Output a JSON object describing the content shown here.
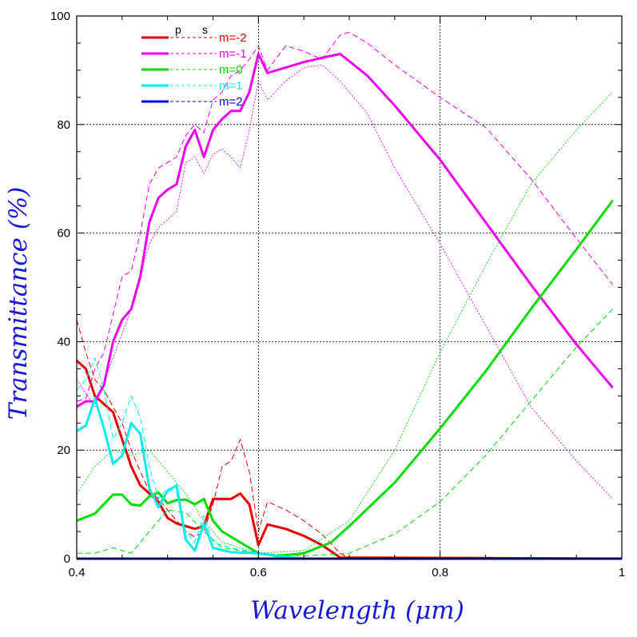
{
  "chart_data": {
    "type": "line",
    "title": "",
    "xlabel": "Wavelength (μm)",
    "ylabel": "Transmittance (%)",
    "xlim": [
      0.4,
      1.0
    ],
    "ylim": [
      0,
      100
    ],
    "xticks": [
      0.4,
      0.6,
      0.8,
      1.0
    ],
    "xtick_labels": [
      "0.4",
      "0.6",
      "0.8",
      "1"
    ],
    "yticks": [
      0,
      20,
      40,
      60,
      80,
      100
    ],
    "ytick_labels": [
      "0",
      "20",
      "40",
      "60",
      "80",
      "100"
    ],
    "grid": true,
    "legend_position": "top-left",
    "legend_header": [
      "p",
      "s"
    ],
    "series": [
      {
        "name": "m=-2",
        "color": "#e60000",
        "p": [
          [
            0.4,
            36.5
          ],
          [
            0.41,
            35
          ],
          [
            0.42,
            30
          ],
          [
            0.43,
            28.5
          ],
          [
            0.44,
            27
          ],
          [
            0.45,
            22
          ],
          [
            0.46,
            17
          ],
          [
            0.47,
            13.5
          ],
          [
            0.48,
            12
          ],
          [
            0.49,
            10.5
          ],
          [
            0.5,
            7.5
          ],
          [
            0.51,
            6.5
          ],
          [
            0.52,
            6
          ],
          [
            0.53,
            5.5
          ],
          [
            0.54,
            6
          ],
          [
            0.55,
            11
          ],
          [
            0.56,
            11
          ],
          [
            0.57,
            11
          ],
          [
            0.58,
            12
          ],
          [
            0.59,
            10
          ],
          [
            0.6,
            2.5
          ],
          [
            0.61,
            6.3
          ],
          [
            0.63,
            5.5
          ],
          [
            0.65,
            4.2
          ],
          [
            0.67,
            2.5
          ],
          [
            0.69,
            0.2
          ],
          [
            1.0,
            0
          ]
        ],
        "s": [
          [
            0.4,
            44
          ],
          [
            0.41,
            38
          ],
          [
            0.42,
            33
          ],
          [
            0.43,
            31
          ],
          [
            0.44,
            28
          ],
          [
            0.45,
            25
          ],
          [
            0.46,
            20
          ],
          [
            0.47,
            16
          ],
          [
            0.48,
            12.5
          ],
          [
            0.49,
            11
          ],
          [
            0.5,
            9
          ],
          [
            0.51,
            7
          ],
          [
            0.52,
            5
          ],
          [
            0.53,
            4
          ],
          [
            0.54,
            5
          ],
          [
            0.55,
            10
          ],
          [
            0.56,
            17
          ],
          [
            0.57,
            18
          ],
          [
            0.58,
            22
          ],
          [
            0.59,
            16
          ],
          [
            0.6,
            5
          ],
          [
            0.61,
            10.5
          ],
          [
            0.63,
            9
          ],
          [
            0.65,
            7
          ],
          [
            0.67,
            4.5
          ],
          [
            0.69,
            1
          ],
          [
            0.7,
            0
          ],
          [
            1.0,
            0
          ]
        ]
      },
      {
        "name": "m=-1",
        "color": "#ee00ee",
        "p": [
          [
            0.4,
            28
          ],
          [
            0.41,
            29
          ],
          [
            0.42,
            29
          ],
          [
            0.43,
            32
          ],
          [
            0.44,
            40
          ],
          [
            0.45,
            44
          ],
          [
            0.46,
            46
          ],
          [
            0.47,
            52
          ],
          [
            0.48,
            62
          ],
          [
            0.49,
            66.5
          ],
          [
            0.5,
            68
          ],
          [
            0.51,
            69
          ],
          [
            0.52,
            76
          ],
          [
            0.53,
            79
          ],
          [
            0.54,
            74
          ],
          [
            0.55,
            79
          ],
          [
            0.56,
            81
          ],
          [
            0.57,
            82.5
          ],
          [
            0.58,
            82.5
          ],
          [
            0.59,
            86
          ],
          [
            0.6,
            93
          ],
          [
            0.61,
            89.5
          ],
          [
            0.63,
            90.5
          ],
          [
            0.65,
            91.5
          ],
          [
            0.67,
            92.3
          ],
          [
            0.69,
            93
          ],
          [
            0.72,
            89
          ],
          [
            0.75,
            83.5
          ],
          [
            0.8,
            73.5
          ],
          [
            0.85,
            62
          ],
          [
            0.9,
            50.5
          ],
          [
            0.95,
            39.5
          ],
          [
            0.99,
            31.5
          ]
        ],
        "s": [
          [
            0.4,
            29
          ],
          [
            0.41,
            29.5
          ],
          [
            0.42,
            35
          ],
          [
            0.43,
            38
          ],
          [
            0.44,
            45
          ],
          [
            0.45,
            52
          ],
          [
            0.46,
            53
          ],
          [
            0.47,
            60
          ],
          [
            0.48,
            69
          ],
          [
            0.49,
            72
          ],
          [
            0.5,
            73
          ],
          [
            0.51,
            74
          ],
          [
            0.52,
            78
          ],
          [
            0.53,
            80
          ],
          [
            0.54,
            78.5
          ],
          [
            0.55,
            84.5
          ],
          [
            0.56,
            86
          ],
          [
            0.57,
            89
          ],
          [
            0.58,
            90
          ],
          [
            0.59,
            92
          ],
          [
            0.6,
            94.5
          ],
          [
            0.61,
            90
          ],
          [
            0.63,
            94.5
          ],
          [
            0.65,
            93.5
          ],
          [
            0.67,
            92
          ],
          [
            0.69,
            96.5
          ],
          [
            0.7,
            97
          ],
          [
            0.72,
            95
          ],
          [
            0.75,
            91
          ],
          [
            0.8,
            85
          ],
          [
            0.85,
            79.5
          ],
          [
            0.9,
            70
          ],
          [
            0.95,
            59
          ],
          [
            0.99,
            50.5
          ]
        ],
        "s2": [
          [
            0.4,
            33
          ],
          [
            0.42,
            28
          ],
          [
            0.44,
            37
          ],
          [
            0.46,
            46
          ],
          [
            0.47,
            52
          ],
          [
            0.48,
            58
          ],
          [
            0.49,
            61
          ],
          [
            0.5,
            62.5
          ],
          [
            0.51,
            64
          ],
          [
            0.52,
            73
          ],
          [
            0.53,
            74
          ],
          [
            0.54,
            71
          ],
          [
            0.55,
            74.5
          ],
          [
            0.56,
            75.5
          ],
          [
            0.57,
            74
          ],
          [
            0.58,
            72
          ],
          [
            0.59,
            79
          ],
          [
            0.6,
            88
          ],
          [
            0.61,
            84.5
          ],
          [
            0.63,
            88
          ],
          [
            0.65,
            90.5
          ],
          [
            0.67,
            91
          ],
          [
            0.69,
            88
          ],
          [
            0.72,
            82
          ],
          [
            0.75,
            72
          ],
          [
            0.8,
            58
          ],
          [
            0.85,
            43
          ],
          [
            0.9,
            28
          ],
          [
            0.95,
            18
          ],
          [
            0.99,
            11
          ]
        ]
      },
      {
        "name": "m=0",
        "color": "#00dd00",
        "p": [
          [
            0.4,
            7
          ],
          [
            0.42,
            8.3
          ],
          [
            0.44,
            11.8
          ],
          [
            0.45,
            11.8
          ],
          [
            0.46,
            10
          ],
          [
            0.47,
            9.8
          ],
          [
            0.48,
            11.5
          ],
          [
            0.49,
            12.2
          ],
          [
            0.5,
            10.2
          ],
          [
            0.51,
            10.8
          ],
          [
            0.52,
            10.9
          ],
          [
            0.53,
            10
          ],
          [
            0.54,
            11
          ],
          [
            0.55,
            7
          ],
          [
            0.56,
            5
          ],
          [
            0.58,
            3
          ],
          [
            0.6,
            1
          ],
          [
            0.62,
            0.5
          ],
          [
            0.65,
            1
          ],
          [
            0.68,
            3
          ],
          [
            0.7,
            6
          ],
          [
            0.75,
            14
          ],
          [
            0.8,
            24
          ],
          [
            0.85,
            34.5
          ],
          [
            0.9,
            46
          ],
          [
            0.95,
            57
          ],
          [
            0.99,
            66
          ]
        ],
        "s": [
          [
            0.4,
            1
          ],
          [
            0.42,
            1
          ],
          [
            0.44,
            2
          ],
          [
            0.46,
            1
          ],
          [
            0.48,
            5
          ],
          [
            0.5,
            9
          ],
          [
            0.52,
            8.5
          ],
          [
            0.54,
            5
          ],
          [
            0.56,
            2
          ],
          [
            0.58,
            1.5
          ],
          [
            0.6,
            1
          ],
          [
            0.65,
            0.5
          ],
          [
            0.7,
            1
          ],
          [
            0.75,
            4.5
          ],
          [
            0.8,
            10.5
          ],
          [
            0.85,
            19
          ],
          [
            0.9,
            29
          ],
          [
            0.95,
            39
          ],
          [
            0.99,
            46
          ]
        ],
        "s2": [
          [
            0.4,
            12
          ],
          [
            0.42,
            17
          ],
          [
            0.44,
            20
          ],
          [
            0.46,
            19
          ],
          [
            0.48,
            20
          ],
          [
            0.5,
            16
          ],
          [
            0.52,
            12
          ],
          [
            0.54,
            7
          ],
          [
            0.56,
            3
          ],
          [
            0.6,
            1
          ],
          [
            0.65,
            1.5
          ],
          [
            0.7,
            7
          ],
          [
            0.75,
            20
          ],
          [
            0.8,
            38
          ],
          [
            0.85,
            54
          ],
          [
            0.9,
            69
          ],
          [
            0.95,
            79
          ],
          [
            0.99,
            86
          ]
        ]
      },
      {
        "name": "m=1",
        "color": "#00eeee",
        "p": [
          [
            0.4,
            23.5
          ],
          [
            0.41,
            24.5
          ],
          [
            0.42,
            29.5
          ],
          [
            0.43,
            24
          ],
          [
            0.44,
            17.5
          ],
          [
            0.45,
            19
          ],
          [
            0.46,
            25
          ],
          [
            0.47,
            23
          ],
          [
            0.48,
            13
          ],
          [
            0.49,
            9.5
          ],
          [
            0.5,
            12.5
          ],
          [
            0.51,
            13.5
          ],
          [
            0.52,
            3.5
          ],
          [
            0.53,
            1.5
          ],
          [
            0.54,
            6.5
          ],
          [
            0.55,
            2
          ],
          [
            0.57,
            1.2
          ],
          [
            0.6,
            1
          ],
          [
            0.62,
            0.5
          ],
          [
            0.65,
            0
          ],
          [
            1.0,
            0
          ]
        ],
        "s": [
          [
            0.4,
            31
          ],
          [
            0.41,
            33
          ],
          [
            0.42,
            37
          ],
          [
            0.43,
            31
          ],
          [
            0.44,
            22
          ],
          [
            0.45,
            25
          ],
          [
            0.46,
            30
          ],
          [
            0.47,
            26
          ],
          [
            0.48,
            17
          ],
          [
            0.49,
            11
          ],
          [
            0.5,
            13
          ],
          [
            0.51,
            12
          ],
          [
            0.52,
            5
          ],
          [
            0.53,
            3
          ],
          [
            0.54,
            8
          ],
          [
            0.55,
            3
          ],
          [
            0.57,
            2
          ],
          [
            0.6,
            1
          ],
          [
            0.65,
            0
          ],
          [
            1.0,
            0
          ]
        ]
      },
      {
        "name": "m=2",
        "color": "#0000ee",
        "p": [
          [
            0.4,
            0
          ],
          [
            1.0,
            0
          ]
        ],
        "s": [
          [
            0.4,
            0
          ],
          [
            1.0,
            0
          ]
        ]
      }
    ]
  }
}
